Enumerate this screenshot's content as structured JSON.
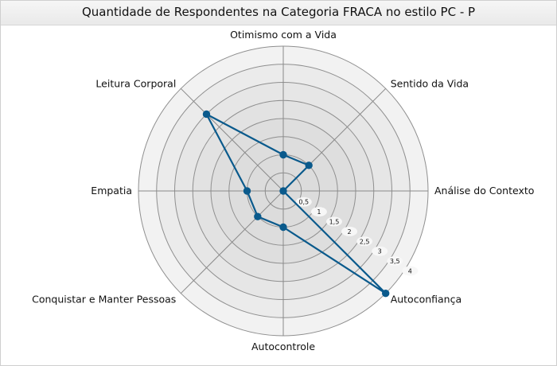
{
  "chart_data": {
    "type": "radar",
    "title": "Quantidade de Respondentes na Categoria FRACA no estilo PC - P",
    "categories": [
      "Otimismo com a Vida",
      "Sentido da Vida",
      "Análise do Contexto",
      "Autoconfiança",
      "Autocontrole",
      "Conquistar e Manter Pessoas",
      "Empatia",
      "Leitura Corporal"
    ],
    "series": [
      {
        "values": [
          1,
          1,
          0,
          4,
          1,
          1,
          1,
          3
        ]
      }
    ],
    "rlim": [
      0,
      4
    ],
    "r_ticks": [
      "0,5",
      "1",
      "1,5",
      "2",
      "2,5",
      "3",
      "3,5",
      "4"
    ],
    "grid": true,
    "legend": "none",
    "colors": {
      "series": "#0a5a8c",
      "ring_outer": "#f2f2f2",
      "ring_inner": "#dcdcdc"
    }
  }
}
